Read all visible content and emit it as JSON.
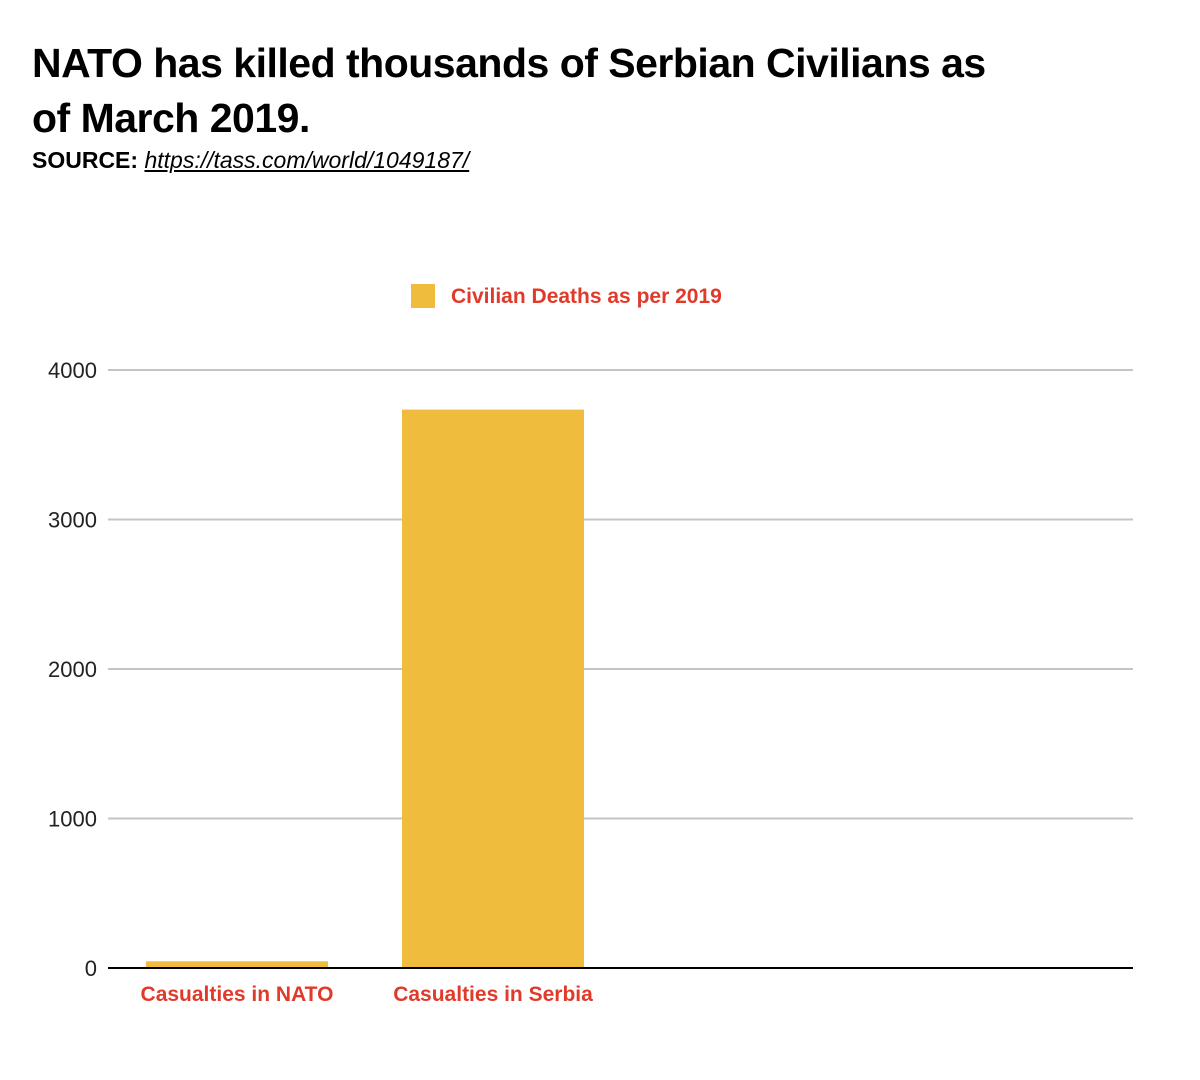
{
  "header": {
    "title_line1": "NATO has killed thousands of Serbian Civilians as",
    "title_line2": "of March 2019.",
    "source_label": "SOURCE:",
    "source_url": "https://tass.com/world/1049187/"
  },
  "colors": {
    "bar": "#F0BC3E",
    "accent_text": "#E03A2A",
    "grid": "#C4C4C4",
    "axis": "#000000"
  },
  "chart_data": {
    "type": "bar",
    "title": "NATO has killed thousands of Serbian Civilians as of March 2019.",
    "categories": [
      "Casualties in NATO",
      "Casualties in Serbia"
    ],
    "series": [
      {
        "name": "Civilian Deaths as per 2019",
        "values": [
          45,
          3735
        ]
      }
    ],
    "xlabel": "",
    "ylabel": "",
    "ylim": [
      0,
      4000
    ],
    "yticks": [
      0,
      1000,
      2000,
      3000,
      4000
    ],
    "grid": true,
    "legend": "top-center"
  }
}
